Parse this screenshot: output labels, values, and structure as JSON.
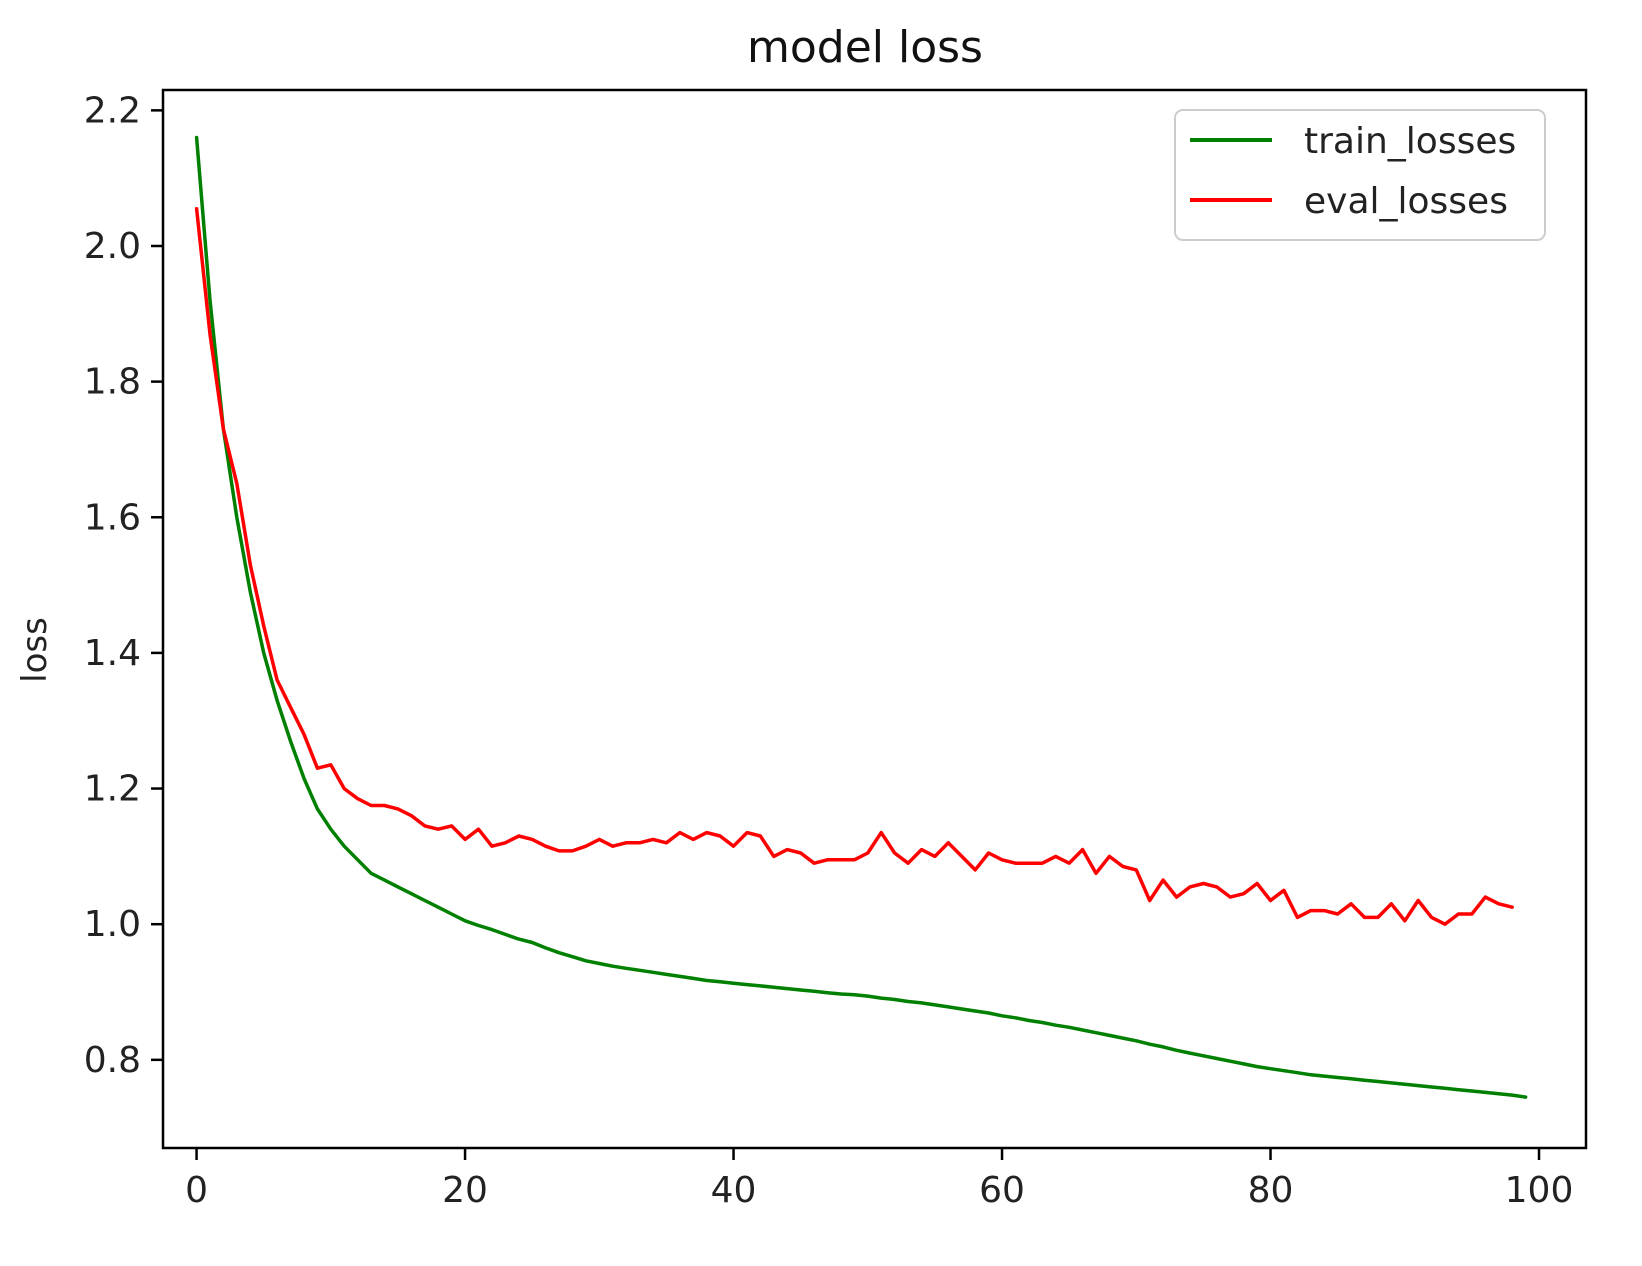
{
  "chart_data": {
    "type": "line",
    "title": "model loss",
    "xlabel": "",
    "ylabel": "loss",
    "xlim": [
      -2.5,
      103.5
    ],
    "ylim": [
      0.67,
      2.23
    ],
    "x_ticks": [
      0,
      20,
      40,
      60,
      80,
      100
    ],
    "x_tick_labels": [
      "0",
      "20",
      "40",
      "60",
      "80",
      "100"
    ],
    "y_ticks": [
      0.8,
      1.0,
      1.2,
      1.4,
      1.6,
      1.8,
      2.0,
      2.2
    ],
    "y_tick_labels": [
      "0.8",
      "1.0",
      "1.2",
      "1.4",
      "1.6",
      "1.8",
      "2.0",
      "2.2"
    ],
    "grid": false,
    "legend_position": "top-right",
    "series": [
      {
        "name": "train_losses",
        "color": "#008000",
        "x_start": 0,
        "x_step": 1,
        "values": [
          2.16,
          1.92,
          1.73,
          1.6,
          1.49,
          1.4,
          1.33,
          1.27,
          1.215,
          1.17,
          1.14,
          1.115,
          1.095,
          1.075,
          1.065,
          1.055,
          1.045,
          1.035,
          1.025,
          1.015,
          1.005,
          0.998,
          0.992,
          0.985,
          0.978,
          0.973,
          0.965,
          0.958,
          0.952,
          0.946,
          0.942,
          0.938,
          0.935,
          0.932,
          0.929,
          0.926,
          0.923,
          0.92,
          0.917,
          0.915,
          0.913,
          0.911,
          0.909,
          0.907,
          0.905,
          0.903,
          0.901,
          0.899,
          0.897,
          0.896,
          0.894,
          0.891,
          0.889,
          0.886,
          0.884,
          0.881,
          0.878,
          0.875,
          0.872,
          0.869,
          0.865,
          0.862,
          0.858,
          0.855,
          0.851,
          0.848,
          0.844,
          0.84,
          0.836,
          0.832,
          0.828,
          0.823,
          0.819,
          0.814,
          0.81,
          0.806,
          0.802,
          0.798,
          0.794,
          0.79,
          0.787,
          0.784,
          0.781,
          0.778,
          0.776,
          0.774,
          0.772,
          0.77,
          0.768,
          0.766,
          0.764,
          0.762,
          0.76,
          0.758,
          0.756,
          0.754,
          0.752,
          0.75,
          0.748,
          0.745
        ]
      },
      {
        "name": "eval_losses",
        "color": "#ff0000",
        "x_start": 0,
        "x_step": 1,
        "values": [
          2.055,
          1.87,
          1.73,
          1.65,
          1.53,
          1.44,
          1.36,
          1.32,
          1.28,
          1.23,
          1.235,
          1.2,
          1.185,
          1.175,
          1.175,
          1.17,
          1.16,
          1.145,
          1.14,
          1.145,
          1.125,
          1.14,
          1.115,
          1.12,
          1.13,
          1.125,
          1.115,
          1.108,
          1.108,
          1.115,
          1.125,
          1.115,
          1.12,
          1.12,
          1.125,
          1.12,
          1.135,
          1.125,
          1.135,
          1.13,
          1.115,
          1.135,
          1.13,
          1.1,
          1.11,
          1.105,
          1.09,
          1.095,
          1.095,
          1.095,
          1.105,
          1.135,
          1.105,
          1.09,
          1.11,
          1.1,
          1.12,
          1.1,
          1.08,
          1.105,
          1.095,
          1.09,
          1.09,
          1.09,
          1.1,
          1.09,
          1.11,
          1.075,
          1.1,
          1.085,
          1.08,
          1.035,
          1.065,
          1.04,
          1.055,
          1.06,
          1.055,
          1.04,
          1.045,
          1.06,
          1.035,
          1.05,
          1.01,
          1.02,
          1.02,
          1.015,
          1.03,
          1.01,
          1.01,
          1.03,
          1.005,
          1.035,
          1.01,
          1.0,
          1.015,
          1.015,
          1.04,
          1.03,
          1.025
        ]
      }
    ]
  }
}
